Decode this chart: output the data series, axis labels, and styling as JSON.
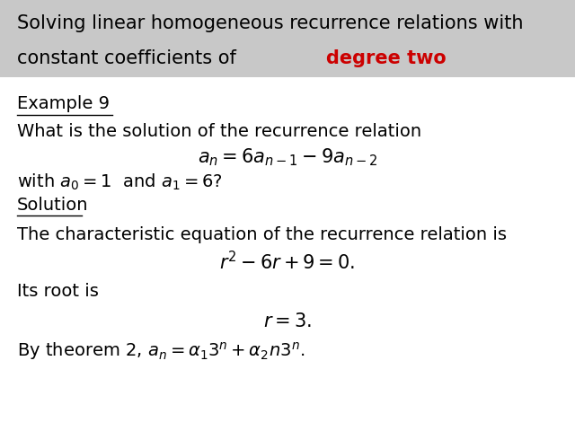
{
  "title_line1": "Solving linear homogeneous recurrence relations with",
  "title_line2_normal": "constant coefficients of ",
  "title_line2_red": "degree two",
  "title_bg_color": "#c8c8c8",
  "title_fontsize": 15,
  "body_fontsize": 14,
  "math_fontsize": 15,
  "bg_color": "#ffffff",
  "text_color": "#000000",
  "red_color": "#cc0000"
}
